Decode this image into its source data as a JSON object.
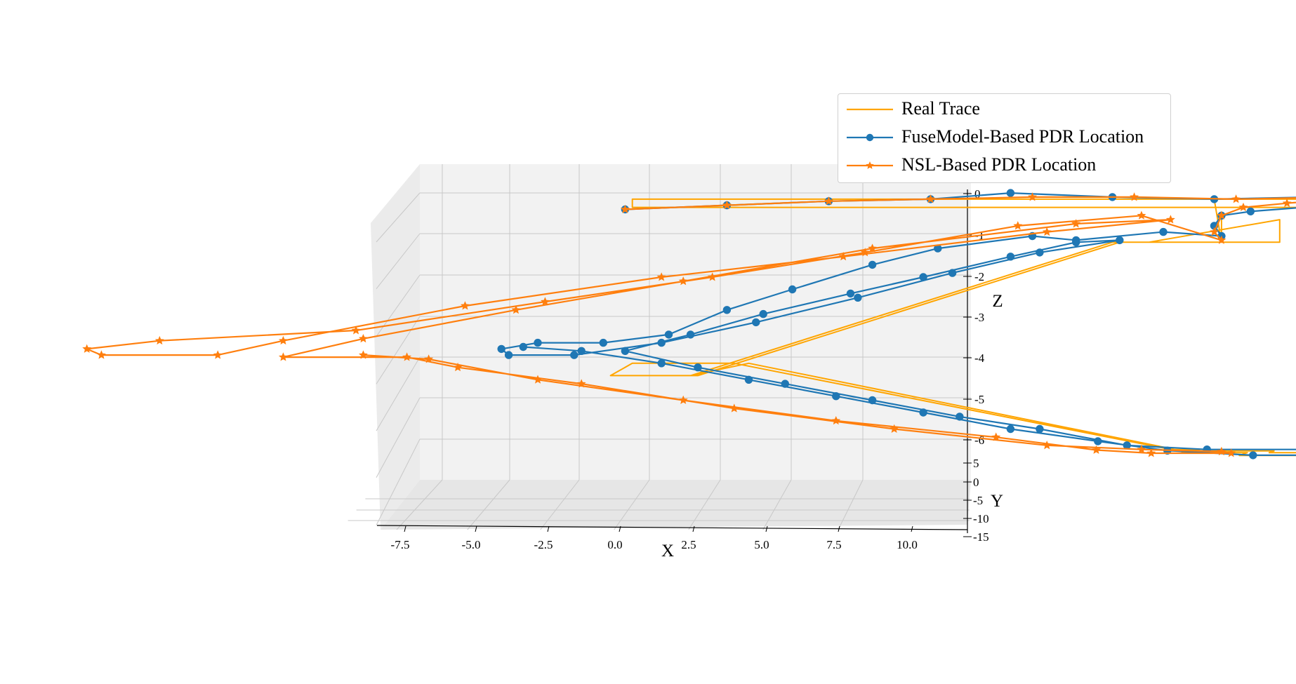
{
  "chart_data": {
    "type": "line3d",
    "xlabel": "X",
    "ylabel": "Y",
    "zlabel": "Z",
    "x_ticks": [
      "-7.5",
      "-5.0",
      "-2.5",
      "0.0",
      "2.5",
      "5.0",
      "7.5",
      "10.0"
    ],
    "y_ticks": [
      "5",
      "0",
      "-5",
      "-10",
      "-15"
    ],
    "z_ticks": [
      "0",
      "-1",
      "-2",
      "-3",
      "-4",
      "-5",
      "-6"
    ],
    "xlim": [
      -8.5,
      12
    ],
    "ylim": [
      -15,
      8
    ],
    "zlim": [
      -6.2,
      0.3
    ],
    "grid": true,
    "legend_position": "top-right",
    "colors": {
      "real": "#ffa500",
      "fuse": "#1f77b4",
      "nsl": "#ff7f0e"
    },
    "series": [
      {
        "name": "Real Trace",
        "marker": "none",
        "points": [
          [
            0.2,
            0.0,
            -0.1
          ],
          [
            10.3,
            0.0,
            -0.1
          ],
          [
            10.3,
            0.0,
            -0.3
          ],
          [
            0.2,
            0.0,
            -0.3
          ],
          [
            0.2,
            0.0,
            -0.1
          ],
          [
            8.2,
            0.0,
            -0.1
          ],
          [
            8.3,
            0.0,
            -1.15
          ],
          [
            9.1,
            0.0,
            -1.15
          ],
          [
            9.1,
            0.0,
            -0.6
          ],
          [
            7.3,
            0.0,
            -1.15
          ],
          [
            6.9,
            0.0,
            -1.15
          ],
          [
            1.1,
            0.0,
            -4.4
          ],
          [
            -0.1,
            0.0,
            -4.4
          ],
          [
            0.2,
            0.0,
            -4.1
          ],
          [
            1.6,
            0.0,
            -4.1
          ],
          [
            7.6,
            0.0,
            -6.2
          ],
          [
            8.0,
            0.0,
            -6.2
          ],
          [
            7.8,
            0.0,
            -6.25
          ],
          [
            7.8,
            -1.0,
            -6.25
          ],
          [
            8.7,
            -1.0,
            -6.25
          ],
          [
            8.7,
            -3.5,
            -6.25
          ],
          [
            10.3,
            -3.5,
            -6.25
          ],
          [
            10.3,
            -1.0,
            -6.25
          ],
          [
            9.0,
            -1.0,
            -6.25
          ],
          [
            9.0,
            0.5,
            -6.25
          ],
          [
            7.7,
            0.5,
            -6.25
          ],
          [
            7.6,
            0.5,
            -6.2
          ],
          [
            1.8,
            0.0,
            -4.1
          ],
          [
            1.0,
            0.0,
            -4.4
          ],
          [
            6.8,
            0.0,
            -1.15
          ],
          [
            8.3,
            0.0,
            -1.15
          ],
          [
            8.3,
            0.0,
            -0.6
          ]
        ]
      },
      {
        "name": "FuseModel-Based PDR Location",
        "marker": "circle",
        "points": [
          [
            0.1,
            0.0,
            -0.35
          ],
          [
            1.5,
            0.0,
            -0.25
          ],
          [
            2.9,
            0.0,
            -0.15
          ],
          [
            4.3,
            0.0,
            -0.1
          ],
          [
            5.4,
            0.0,
            0.05
          ],
          [
            6.8,
            0.0,
            -0.05
          ],
          [
            8.2,
            0.0,
            -0.1
          ],
          [
            9.6,
            0.0,
            -0.05
          ],
          [
            10.8,
            0.0,
            0.0
          ],
          [
            10.9,
            0.0,
            -0.05
          ],
          [
            9.8,
            0.0,
            -0.25
          ],
          [
            8.7,
            0.0,
            -0.4
          ],
          [
            8.3,
            0.0,
            -0.5
          ],
          [
            8.2,
            0.0,
            -0.75
          ],
          [
            8.3,
            0.0,
            -1.0
          ],
          [
            7.5,
            0.0,
            -0.9
          ],
          [
            6.3,
            0.0,
            -1.1
          ],
          [
            5.7,
            0.0,
            -1.0
          ],
          [
            4.4,
            0.0,
            -1.3
          ],
          [
            3.5,
            0.0,
            -1.7
          ],
          [
            2.4,
            0.0,
            -2.3
          ],
          [
            1.5,
            0.0,
            -2.8
          ],
          [
            0.7,
            0.0,
            -3.4
          ],
          [
            -0.2,
            0.0,
            -3.6
          ],
          [
            -1.1,
            0.0,
            -3.6
          ],
          [
            -1.6,
            0.0,
            -3.75
          ],
          [
            -1.5,
            0.0,
            -3.9
          ],
          [
            -0.6,
            0.0,
            -3.9
          ],
          [
            0.6,
            0.0,
            -3.6
          ],
          [
            1.9,
            0.0,
            -3.1
          ],
          [
            3.3,
            0.0,
            -2.5
          ],
          [
            4.6,
            0.0,
            -1.9
          ],
          [
            5.8,
            0.0,
            -1.4
          ],
          [
            6.9,
            0.0,
            -1.1
          ],
          [
            6.3,
            0.0,
            -1.15
          ],
          [
            5.4,
            0.0,
            -1.5
          ],
          [
            4.2,
            0.0,
            -2.0
          ],
          [
            3.2,
            0.0,
            -2.4
          ],
          [
            2.0,
            0.0,
            -2.9
          ],
          [
            1.0,
            0.0,
            -3.4
          ],
          [
            0.1,
            0.0,
            -3.8
          ],
          [
            1.1,
            0.0,
            -4.2
          ],
          [
            2.3,
            0.0,
            -4.6
          ],
          [
            3.5,
            0.0,
            -5.0
          ],
          [
            4.7,
            0.0,
            -5.4
          ],
          [
            5.8,
            0.0,
            -5.7
          ],
          [
            7.0,
            0.0,
            -6.1
          ],
          [
            8.1,
            0.0,
            -6.2
          ],
          [
            9.4,
            0.0,
            -6.2
          ],
          [
            10.1,
            0.0,
            -6.3
          ],
          [
            10.0,
            -1.5,
            -6.3
          ],
          [
            8.8,
            -1.5,
            -6.3
          ],
          [
            7.6,
            -1.0,
            -6.2
          ],
          [
            6.6,
            0.0,
            -6.0
          ],
          [
            5.4,
            0.0,
            -5.7
          ],
          [
            4.2,
            0.0,
            -5.3
          ],
          [
            3.0,
            0.0,
            -4.9
          ],
          [
            1.8,
            0.0,
            -4.5
          ],
          [
            0.6,
            0.0,
            -4.1
          ],
          [
            -0.5,
            0.0,
            -3.8
          ],
          [
            -1.3,
            0.0,
            -3.7
          ]
        ]
      },
      {
        "name": "NSL-Based PDR Location",
        "marker": "star",
        "points": [
          [
            0.1,
            0.0,
            -0.35
          ],
          [
            1.5,
            0.0,
            -0.25
          ],
          [
            2.9,
            0.0,
            -0.15
          ],
          [
            4.3,
            0.0,
            -0.1
          ],
          [
            5.7,
            0.0,
            -0.05
          ],
          [
            7.1,
            0.0,
            -0.05
          ],
          [
            8.5,
            0.0,
            -0.1
          ],
          [
            9.9,
            0.0,
            -0.05
          ],
          [
            10.6,
            0.0,
            0.0
          ],
          [
            9.2,
            0.0,
            -0.2
          ],
          [
            8.6,
            0.0,
            -0.3
          ],
          [
            8.3,
            0.0,
            -0.5
          ],
          [
            8.2,
            0.0,
            -0.9
          ],
          [
            8.3,
            0.0,
            -1.1
          ],
          [
            7.2,
            0.0,
            -0.5
          ],
          [
            5.5,
            0.0,
            -0.75
          ],
          [
            3.4,
            0.0,
            -1.4
          ],
          [
            1.3,
            0.0,
            -2.0
          ],
          [
            -1.0,
            0.0,
            -2.6
          ],
          [
            -3.6,
            0.0,
            -3.3
          ],
          [
            -6.3,
            0.0,
            -3.55
          ],
          [
            -7.3,
            0.0,
            -3.75
          ],
          [
            -7.1,
            0.0,
            -3.9
          ],
          [
            -5.5,
            0.0,
            -3.9
          ],
          [
            -4.6,
            0.0,
            -3.55
          ],
          [
            -2.1,
            0.0,
            -2.7
          ],
          [
            0.6,
            0.0,
            -2.0
          ],
          [
            3.1,
            0.0,
            -1.5
          ],
          [
            5.9,
            0.0,
            -0.9
          ],
          [
            7.6,
            0.0,
            -0.6
          ],
          [
            6.3,
            0.0,
            -0.7
          ],
          [
            3.5,
            0.0,
            -1.3
          ],
          [
            0.9,
            0.0,
            -2.1
          ],
          [
            -1.4,
            0.0,
            -2.8
          ],
          [
            -3.5,
            0.0,
            -3.5
          ],
          [
            -4.6,
            0.0,
            -3.95
          ],
          [
            -2.9,
            0.0,
            -3.95
          ],
          [
            -2.2,
            0.0,
            -4.2
          ],
          [
            -0.5,
            0.0,
            -4.6
          ],
          [
            1.6,
            0.0,
            -5.2
          ],
          [
            3.8,
            0.0,
            -5.7
          ],
          [
            5.9,
            0.0,
            -6.1
          ],
          [
            7.2,
            0.0,
            -6.2
          ],
          [
            8.3,
            0.0,
            -6.25
          ],
          [
            8.5,
            -1.5,
            -6.25
          ],
          [
            7.4,
            -1.5,
            -6.25
          ],
          [
            6.6,
            -0.5,
            -6.2
          ],
          [
            5.2,
            0.0,
            -5.9
          ],
          [
            3.0,
            0.0,
            -5.5
          ],
          [
            0.9,
            0.0,
            -5.0
          ],
          [
            -1.1,
            0.0,
            -4.5
          ],
          [
            -2.6,
            0.0,
            -4.0
          ],
          [
            -3.5,
            0.0,
            -3.9
          ]
        ]
      }
    ]
  }
}
